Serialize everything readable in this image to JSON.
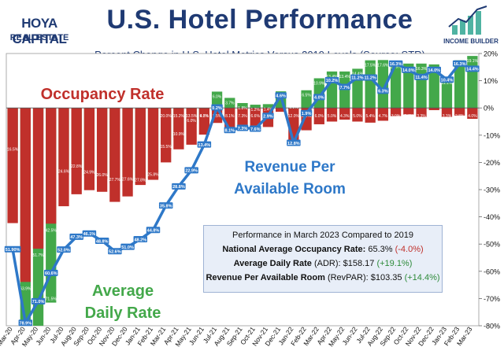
{
  "branding": {
    "logo_main": "HOYA CAPITAL",
    "logo_sub": "REAL ESTATE",
    "income_builder": "INCOME BUILDER"
  },
  "title": "U.S. Hotel Performance",
  "subtitle": "Percent Change in U.S. Hotel Metrics Versus 2019 Levels (Source: STR)",
  "labels": {
    "occupancy": "Occupancy Rate",
    "revpar_line1": "Revenue Per",
    "revpar_line2": "Available Room",
    "adr_line1": "Average",
    "adr_line2": "Daily Rate"
  },
  "info_box": {
    "header": "Performance in March 2023 Compared to 2019",
    "occ_label": "National Average Occupancy Rate:",
    "occ_value": "65.3%",
    "occ_change": "(-4.0%)",
    "adr_label": "Average Daily Rate",
    "adr_label_suffix": "(ADR):",
    "adr_value": "$158.17",
    "adr_change": "(+19.1%)",
    "revpar_label": "Revenue Per Available Room",
    "revpar_label_suffix": "(RevPAR):",
    "revpar_value": "$103.35",
    "revpar_change": "(+14.4%)"
  },
  "colors": {
    "occupancy": "#c0302b",
    "adr": "#43a84a",
    "revpar": "#2e78c8",
    "navy": "#1f3a73"
  },
  "chart_data": {
    "type": "bar",
    "title": "U.S. Hotel Performance",
    "ylim": [
      -80,
      20
    ],
    "yticks": [
      20,
      10,
      0,
      -10,
      -20,
      -30,
      -40,
      -50,
      -60,
      -70,
      -80
    ],
    "ytick_labels": [
      "20%",
      "10%",
      "0%",
      "-10%",
      "-20%",
      "-30%",
      "-40%",
      "-50%",
      "-60%",
      "-70%",
      "-80%"
    ],
    "categories": [
      "Mar-20",
      "Apr-20",
      "May-20",
      "Jun-20",
      "Jul-20",
      "Aug-20",
      "Sep-20",
      "Oct-20",
      "Nov-20",
      "Dec-20",
      "Jan-21",
      "Feb-21",
      "Mar-21",
      "Apr-21",
      "May-21",
      "Jun-21",
      "Jul-21",
      "Aug-21",
      "Sep-21",
      "Oct-21",
      "Nov-21",
      "Dec-21",
      "Jan-22",
      "Feb-22",
      "Mar-22",
      "Apr-22",
      "May-22",
      "Jun-22",
      "Jul-22",
      "Aug-22",
      "Sep-22",
      "Oct-22",
      "Nov-22",
      "Dec-22",
      "Jan-23",
      "Feb-23",
      "Mar-23"
    ],
    "x_tick_labels": [
      "Mar-20",
      "Apr-20",
      "May-20",
      "Jun-20",
      "Jul-20",
      "Aug-20",
      "Sep-20",
      "Oct-20",
      "Nov-20",
      "Dec-20",
      "Jan-21",
      "Feb-21",
      "Mar-21",
      "Apr-21",
      "May-21",
      "Jun-21",
      "Jul-21",
      "Aug-21",
      "Sep-21",
      "Oct-21",
      "Nov-21",
      "Dec-21",
      "Jan-22",
      "Feb-22",
      "Mar-22",
      "Apr-22",
      "May-22",
      "Jun-22",
      "Jul-22",
      "Aug-22",
      "Sep-22",
      "Oct-22",
      "Nov-22",
      "Dec-22",
      "Jan-23",
      "Feb-23",
      "Mar-23"
    ],
    "series": [
      {
        "name": "Occupancy Rate",
        "kind": "bar",
        "values": [
          -42.3,
          -63.9,
          -51.7,
          -42.5,
          -36.1,
          -31.7,
          -30.2,
          -30.8,
          -34.5,
          -32.5,
          -28.3,
          -26.4,
          -20.0,
          -15.2,
          -13.5,
          -9.8,
          -5.5,
          -8.1,
          -7.3,
          -6.6,
          -7.0,
          -1.4,
          -12.0,
          -8.2,
          -6.0,
          -5.0,
          -4.3,
          -5.0,
          -5.4,
          -4.7,
          -3.0,
          -2.4,
          -3.3,
          -0.8,
          -3.3,
          -2.8,
          -4.0
        ],
        "labels": [
          "42.3%",
          "63.9%",
          "51.7%",
          "42.5%",
          "36.1%",
          "31.7%",
          "30.2%",
          "30.8%",
          "34.5%",
          "32.5%",
          "28.3%",
          "26.4%",
          "20.0%",
          "15.2%",
          "13.5%",
          "9.8%",
          "5.5%",
          "8.1%",
          "7.3%",
          "6.6%",
          "7.0%",
          "1.4%",
          "12.0%",
          "8.2%",
          "6.0%",
          "5.0%",
          "4.3%",
          "5.0%",
          "5.4%",
          "4.7%",
          "3.0%",
          "2.4%",
          "3.3%",
          "0.8%",
          "3.3%",
          "2.8%",
          "4.0%"
        ]
      },
      {
        "name": "Average Daily Rate",
        "kind": "bar",
        "values": [
          -16.5,
          -78.0,
          -80.0,
          -71.5,
          -24.6,
          -22.8,
          -24.9,
          -26.0,
          -27.7,
          -27.6,
          -27.8,
          -25.8,
          -15.5,
          -10.9,
          -6.0,
          -4.3,
          6.0,
          3.7,
          1.8,
          1.2,
          1.4,
          6.1,
          -1.1,
          6.5,
          10.9,
          13.4,
          13.4,
          14.4,
          17.5,
          17.6,
          16.9,
          16.3,
          16.3,
          16.0,
          11.1,
          17.5,
          19.1
        ],
        "labels": [
          "16.5%",
          "",
          "",
          "71.5%",
          "24.6%",
          "22.8%",
          "24.9%",
          "26.0%",
          "27.7%",
          "27.6%",
          "27.8%",
          "25.8%",
          "15.5%",
          "10.9%",
          "6.0%",
          "4.3%",
          "6.0%",
          "3.7%",
          "1.8%",
          "1.2%",
          "1.4%",
          "6.1%",
          "1.1%",
          "6.5%",
          "10.9%",
          "13.4%",
          "13.4%",
          "14.4%",
          "17.5%",
          "17.6%",
          "16.9%",
          "16.3%",
          "16.3%",
          "16.0%",
          "11.1%",
          "17.5%",
          "19.1%"
        ]
      },
      {
        "name": "Revenue Per Available Room",
        "kind": "line",
        "values": [
          -51.9,
          -78.9,
          -71.0,
          -60.6,
          -52.0,
          -47.3,
          -46.1,
          -48.8,
          -52.6,
          -51.0,
          -48.2,
          -44.8,
          -35.8,
          -28.8,
          -22.9,
          -13.4,
          0.2,
          -8.1,
          -7.3,
          -7.6,
          -2.9,
          4.6,
          -12.8,
          -1.9,
          4.0,
          10.2,
          7.7,
          11.2,
          11.2,
          6.3,
          16.3,
          14.0,
          11.4,
          14.0,
          10.4,
          16.3,
          14.4
        ],
        "labels": [
          "51.90%",
          "78.9%",
          "71.0%",
          "60.6%",
          "52.0%",
          "47.3%",
          "46.1%",
          "48.8%",
          "52.6%",
          "51.0%",
          "48.2%",
          "44.8%",
          "35.8%",
          "28.8%",
          "22.9%",
          "13.4%",
          "0.2%",
          "8.1%",
          "7.3%",
          "7.6%",
          "2.9%",
          "4.6%",
          "12.8%",
          "1.9%",
          "4.0%",
          "10.2%",
          "7.7%",
          "11.2%",
          "11.2%",
          "6.3%",
          "16.3%",
          "14.0%",
          "11.4%",
          "14.0%",
          "10.4%",
          "16.3%",
          "14.4%"
        ]
      }
    ]
  }
}
